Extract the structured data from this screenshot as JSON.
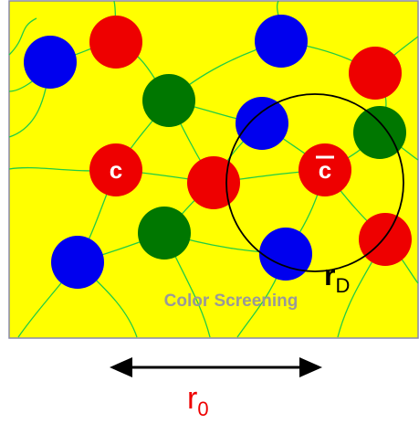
{
  "labels": {
    "quark": "c",
    "antiquark": "c",
    "caption": "Color Screening",
    "debye_radius": {
      "base": "r",
      "subscript": "D"
    },
    "separation": {
      "base": "r",
      "subscript": "0"
    }
  }
}
